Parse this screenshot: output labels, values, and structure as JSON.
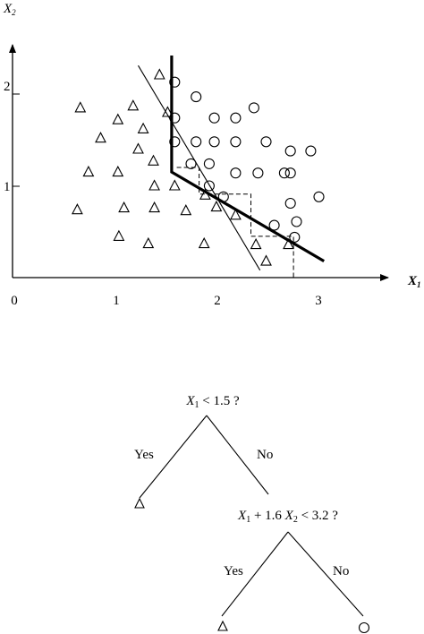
{
  "plot": {
    "x_axis_label": "X",
    "x_axis_sub": "1",
    "y_axis_label": "X",
    "y_axis_sub": "2",
    "x_ticks": [
      "0",
      "1",
      "2",
      "3"
    ],
    "y_ticks": [
      "1",
      "2"
    ]
  },
  "chart_data": {
    "type": "scatter",
    "xlim": [
      0,
      3.7
    ],
    "ylim": [
      0,
      2.55
    ],
    "series": [
      {
        "marker": "triangle",
        "points": [
          [
            0.62,
            0.74
          ],
          [
            0.65,
            1.85
          ],
          [
            0.73,
            1.15
          ],
          [
            0.85,
            1.52
          ],
          [
            1.02,
            1.72
          ],
          [
            1.02,
            1.15
          ],
          [
            1.03,
            0.45
          ],
          [
            1.08,
            0.76
          ],
          [
            1.17,
            1.87
          ],
          [
            1.22,
            1.4
          ],
          [
            1.27,
            1.62
          ],
          [
            1.32,
            0.37
          ],
          [
            1.37,
            1.27
          ],
          [
            1.38,
            0.76
          ],
          [
            1.38,
            1.0
          ],
          [
            1.43,
            2.21
          ],
          [
            1.51,
            1.8
          ],
          [
            1.58,
            1.0
          ],
          [
            1.69,
            0.73
          ],
          [
            1.87,
            0.37
          ],
          [
            1.88,
            0.9
          ],
          [
            1.99,
            0.77
          ],
          [
            2.18,
            0.68
          ],
          [
            2.38,
            0.36
          ],
          [
            2.48,
            0.18
          ],
          [
            2.7,
            0.36
          ]
        ]
      },
      {
        "marker": "circle",
        "points": [
          [
            1.58,
            2.13
          ],
          [
            1.79,
            1.97
          ],
          [
            1.58,
            1.74
          ],
          [
            1.58,
            1.48
          ],
          [
            1.74,
            1.24
          ],
          [
            1.79,
            1.48
          ],
          [
            1.97,
            1.74
          ],
          [
            1.97,
            1.48
          ],
          [
            1.92,
            1.24
          ],
          [
            1.92,
            1.0
          ],
          [
            2.18,
            1.74
          ],
          [
            2.18,
            1.48
          ],
          [
            2.18,
            1.14
          ],
          [
            2.36,
            1.85
          ],
          [
            2.48,
            1.48
          ],
          [
            2.4,
            1.14
          ],
          [
            2.66,
            1.14
          ],
          [
            2.72,
            1.38
          ],
          [
            2.92,
            1.38
          ],
          [
            2.72,
            1.14
          ],
          [
            2.72,
            0.81
          ],
          [
            3.0,
            0.88
          ],
          [
            2.06,
            0.88
          ],
          [
            2.56,
            0.57
          ],
          [
            2.78,
            0.61
          ],
          [
            2.76,
            0.44
          ]
        ]
      }
    ],
    "tree_boundary": [
      [
        1.55,
        2.42
      ],
      [
        1.55,
        1.15
      ],
      [
        3.05,
        0.18
      ]
    ],
    "oblique_line": [
      [
        1.22,
        2.31
      ],
      [
        2.42,
        0.08
      ]
    ],
    "staircase_boundary": [
      [
        1.6,
        1.2
      ],
      [
        1.82,
        1.2
      ],
      [
        1.82,
        0.91
      ],
      [
        2.33,
        0.91
      ],
      [
        2.33,
        0.45
      ],
      [
        2.75,
        0.45
      ],
      [
        2.75,
        0.0
      ]
    ]
  },
  "tree": {
    "root": {
      "var": "X",
      "sub": "1",
      "rest": " < 1.5 ?"
    },
    "root_yes": "Yes",
    "root_no": "No",
    "root_yes_leaf": "triangle",
    "second": {
      "var1": "X",
      "sub1": "1",
      "mid": " + 1.6 ",
      "var2": "X",
      "sub2": "2",
      "rest": " < 3.2 ?"
    },
    "second_yes": "Yes",
    "second_no": "No",
    "second_yes_leaf": "triangle",
    "second_no_leaf": "circle"
  }
}
